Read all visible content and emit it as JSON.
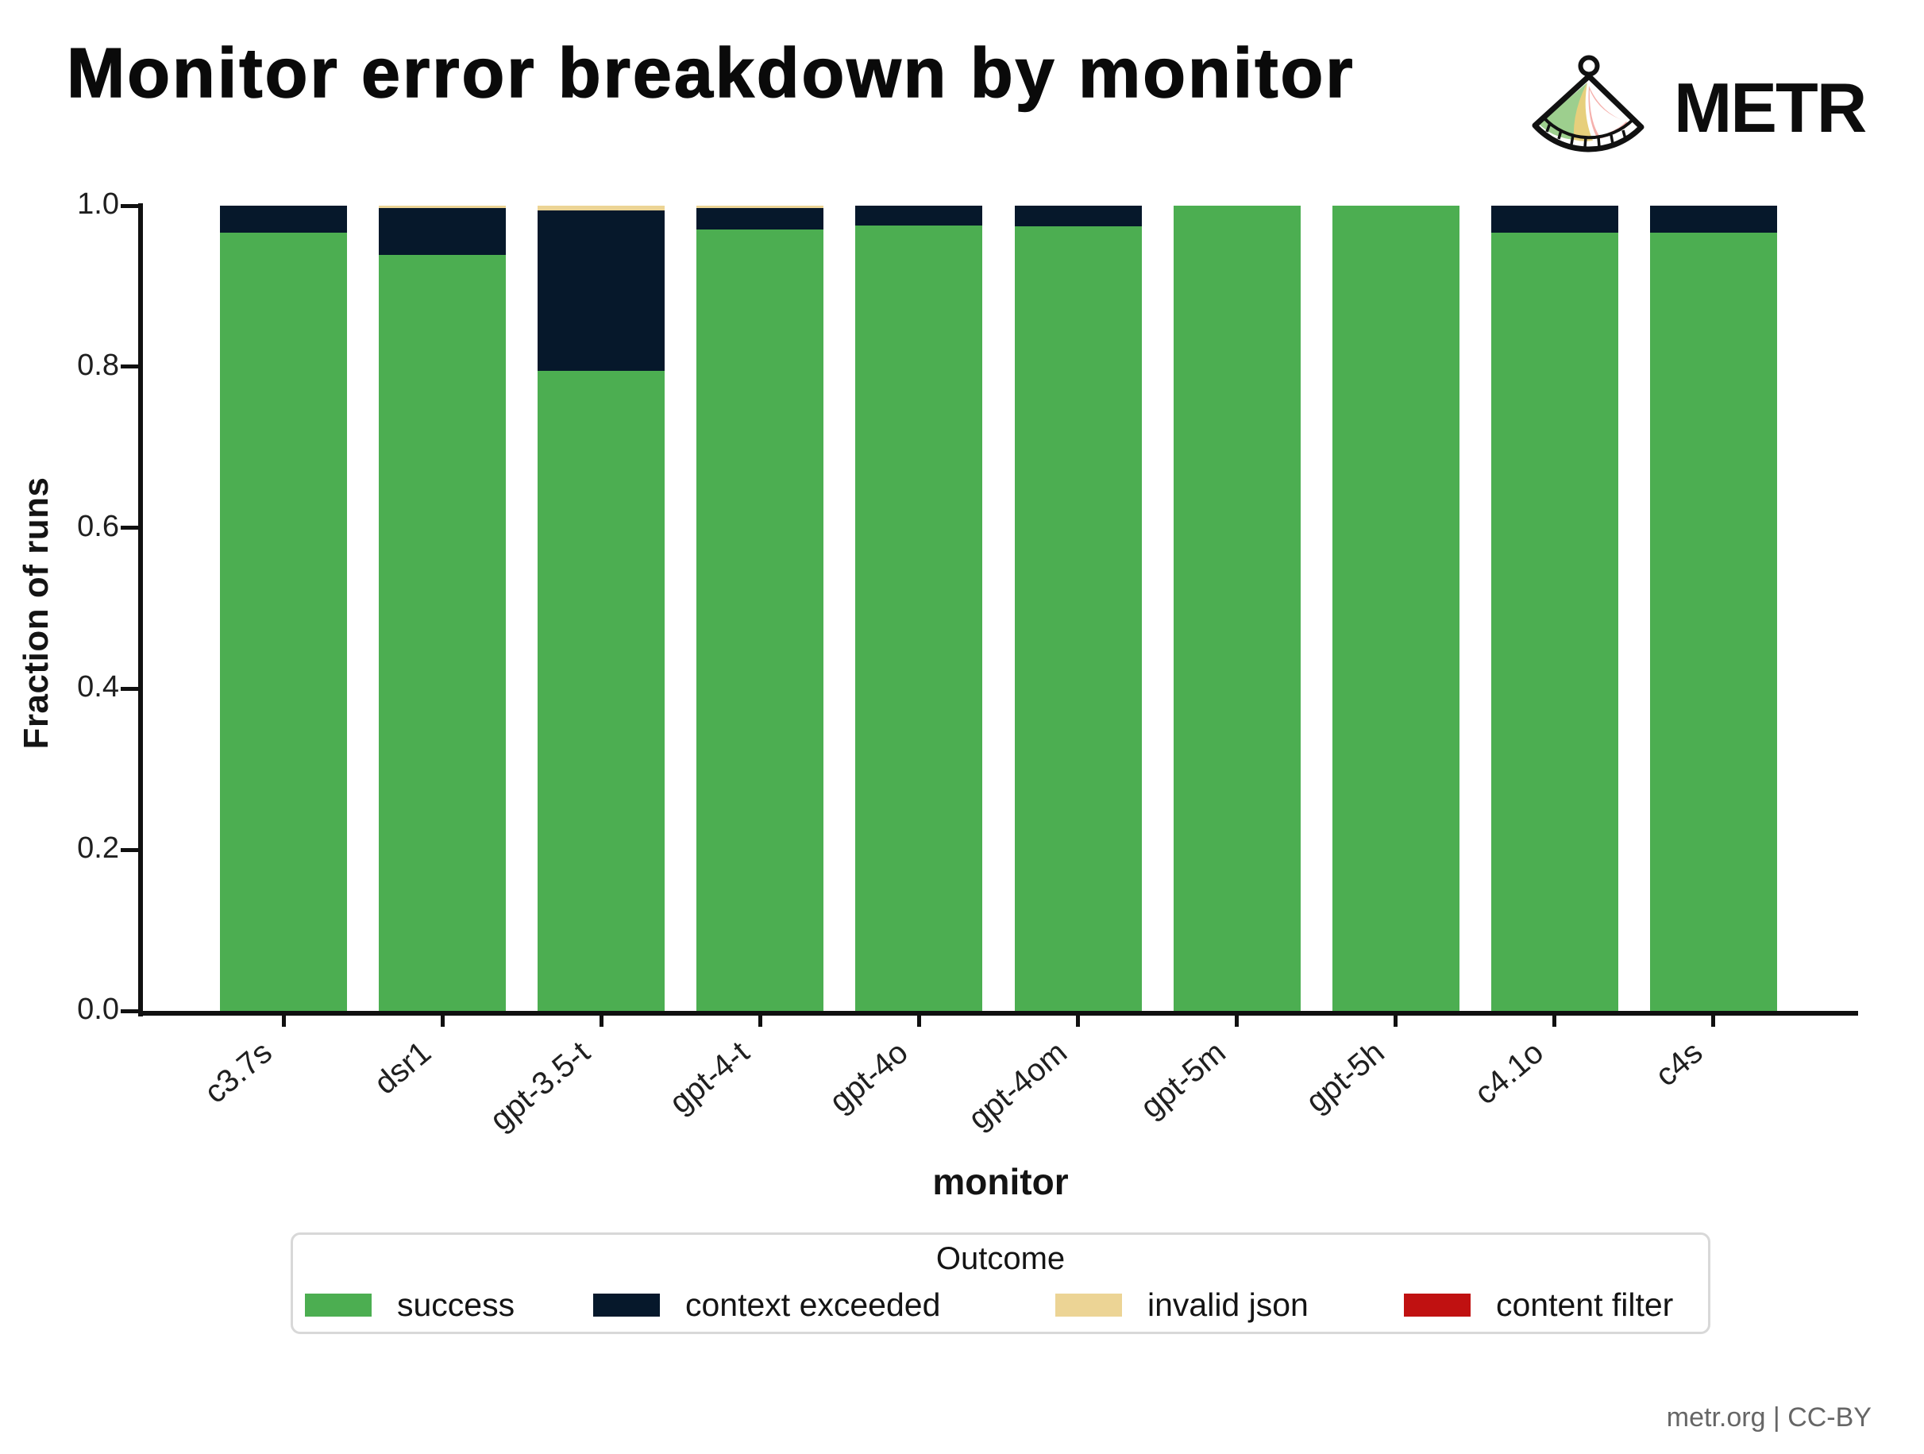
{
  "title": "Monitor error breakdown by monitor",
  "logo": {
    "text": "METR"
  },
  "legend": {
    "title": "Outcome"
  },
  "footer": {
    "credit": "metr.org | CC-BY"
  },
  "chart_data": {
    "type": "bar",
    "stacked": true,
    "title": "Monitor error breakdown by monitor",
    "xlabel": "monitor",
    "ylabel": "Fraction of runs",
    "ylim": [
      0.0,
      1.0
    ],
    "yticks": [
      "0.0",
      "0.2",
      "0.4",
      "0.6",
      "0.8",
      "1.0"
    ],
    "grid": false,
    "legend_position": "bottom",
    "categories": [
      "c3.7s",
      "dsr1",
      "gpt-3.5-t",
      "gpt-4-t",
      "gpt-4o",
      "gpt-4om",
      "gpt-5m",
      "gpt-5h",
      "c4.1o",
      "c4s"
    ],
    "series": [
      {
        "name": "success",
        "color": "#4cae51",
        "values": [
          0.967,
          0.939,
          0.795,
          0.97,
          0.975,
          0.974,
          1.0,
          1.0,
          0.967,
          0.967
        ]
      },
      {
        "name": "context exceeded",
        "color": "#06182b",
        "values": [
          0.033,
          0.058,
          0.199,
          0.027,
          0.025,
          0.026,
          0.0,
          0.0,
          0.033,
          0.033
        ]
      },
      {
        "name": "invalid json",
        "color": "#ecd495",
        "values": [
          0.0,
          0.003,
          0.006,
          0.003,
          0.0,
          0.0,
          0.0,
          0.0,
          0.0,
          0.0
        ]
      },
      {
        "name": "content filter",
        "color": "#c01111",
        "values": [
          0.0,
          0.0,
          0.0,
          0.0,
          0.0,
          0.0,
          0.0,
          0.0,
          0.0,
          0.0
        ]
      }
    ]
  },
  "legend_item_lefts": [
    15,
    378,
    960,
    1399
  ]
}
